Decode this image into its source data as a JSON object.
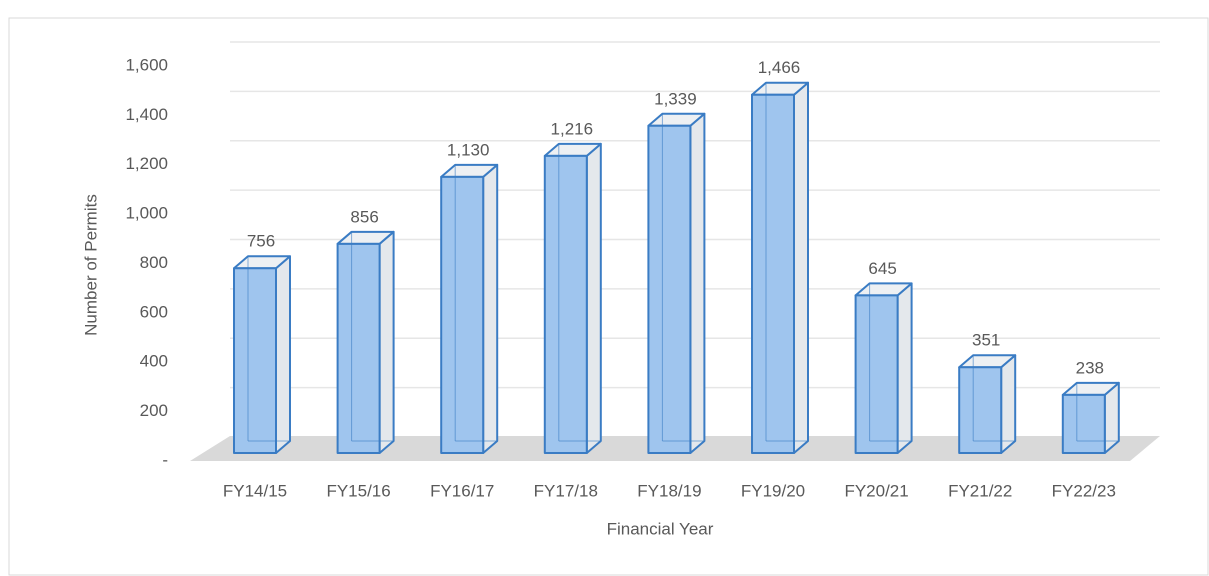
{
  "chart_data": {
    "type": "bar3d",
    "x_label": "Financial Year",
    "y_label": "Number of Permits",
    "categories": [
      "FY14/15",
      "FY15/16",
      "FY16/17",
      "FY17/18",
      "FY18/19",
      "FY19/20",
      "FY20/21",
      "FY21/22",
      "FY22/23"
    ],
    "values": [
      756,
      856,
      1130,
      1216,
      1339,
      1466,
      645,
      351,
      238
    ],
    "value_labels": [
      "756",
      "856",
      "1,130",
      "1,216",
      "1,339",
      "1,466",
      "645",
      "351",
      "238"
    ],
    "color": "#9fc5ee",
    "edge_color": "#3a7cc4",
    "ylim": [
      0,
      1600
    ],
    "yticks": [
      {
        "value": 0,
        "label": "-"
      },
      200,
      400,
      600,
      800,
      {
        "value": 1000,
        "label": "1,000"
      },
      {
        "value": 1200,
        "label": "1,200"
      },
      {
        "value": 1400,
        "label": "1,400"
      },
      {
        "value": 1600,
        "label": "1,600"
      }
    ],
    "grid": true
  }
}
